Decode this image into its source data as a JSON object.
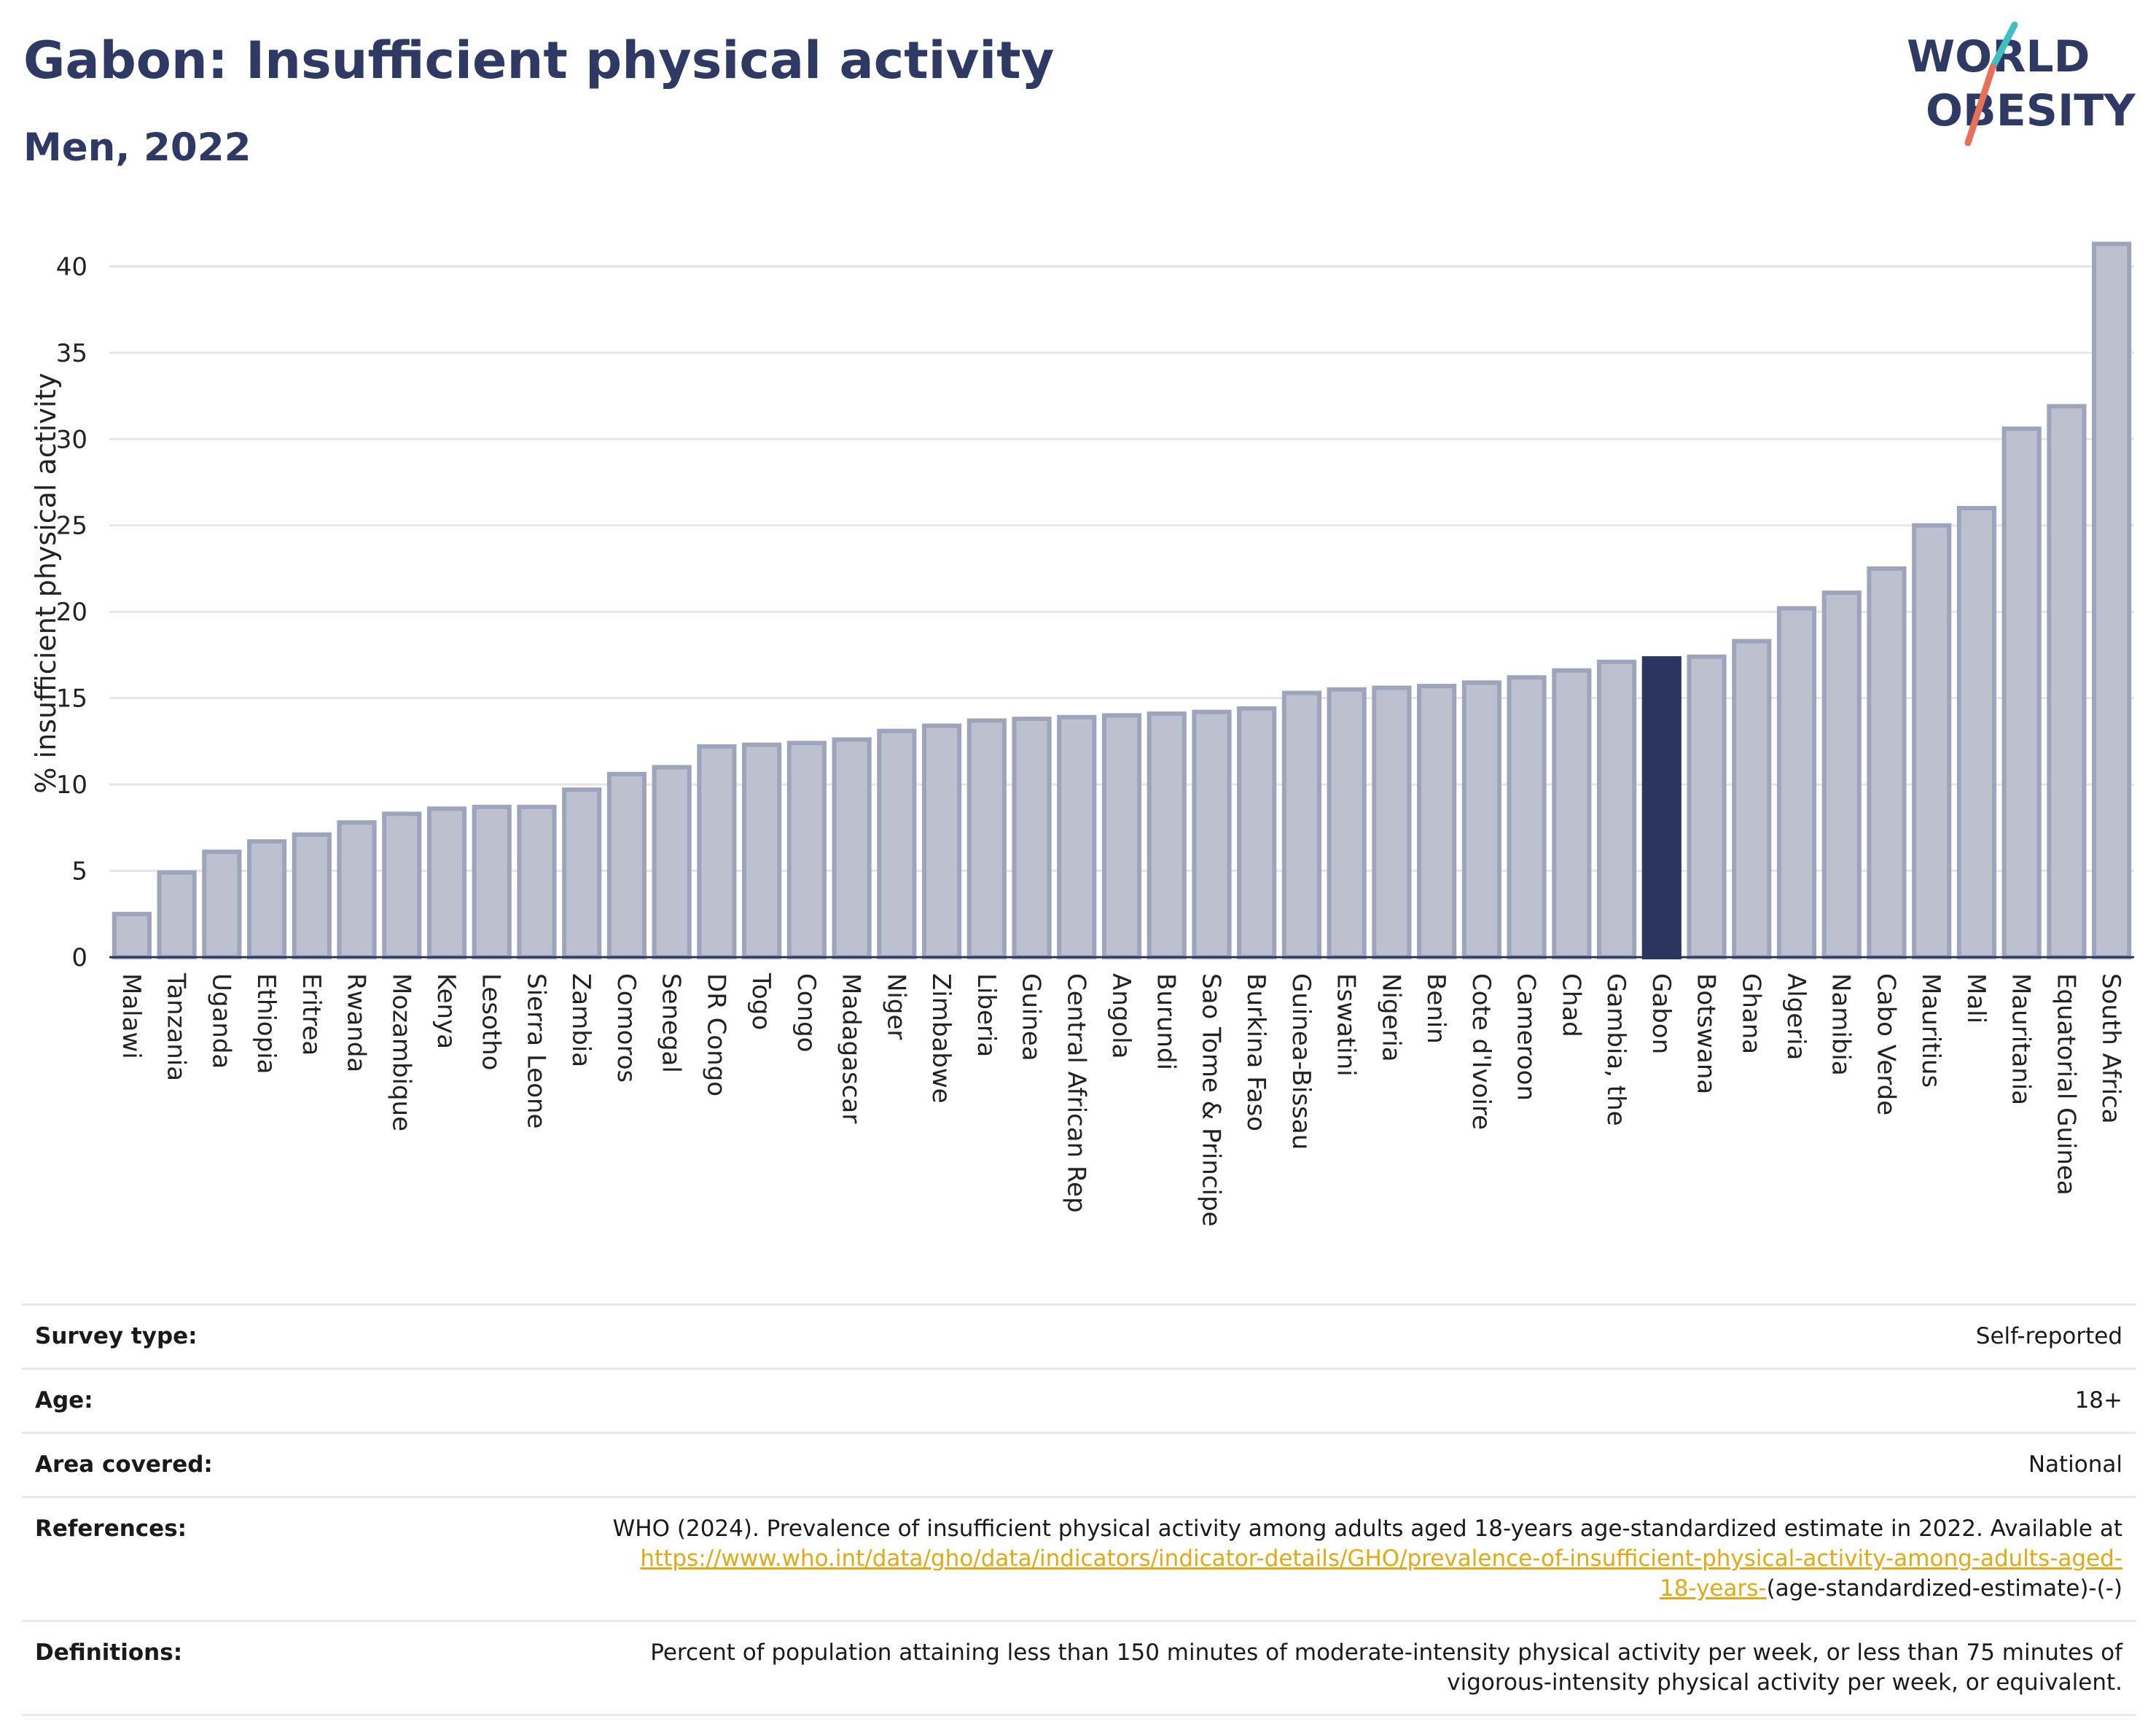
{
  "header": {
    "title": "Gabon: Insufficient physical activity",
    "subtitle": "Men, 2022"
  },
  "logo": {
    "line1": "WORLD",
    "line2": "OBESITY"
  },
  "colors": {
    "bar": "#bcc0cf",
    "bar_edge": "#9ea4bb",
    "highlight": "#2b3560",
    "title": "#2e3a63",
    "link": "#e4a815"
  },
  "chart_data": {
    "type": "bar",
    "title": "Gabon: Insufficient physical activity",
    "subtitle": "Men, 2022",
    "xlabel": "",
    "ylabel": "% insufficient physical activity",
    "ylim": [
      0,
      42
    ],
    "yticks": [
      0,
      5,
      10,
      15,
      20,
      25,
      30,
      35,
      40
    ],
    "grid": true,
    "highlight": "Gabon",
    "categories": [
      "Malawi",
      "Tanzania",
      "Uganda",
      "Ethiopia",
      "Eritrea",
      "Rwanda",
      "Mozambique",
      "Kenya",
      "Lesotho",
      "Sierra Leone",
      "Zambia",
      "Comoros",
      "Senegal",
      "DR Congo",
      "Togo",
      "Congo",
      "Madagascar",
      "Niger",
      "Zimbabwe",
      "Liberia",
      "Guinea",
      "Central African Rep",
      "Angola",
      "Burundi",
      "Sao Tome & Principe",
      "Burkina Faso",
      "Guinea-Bissau",
      "Eswatini",
      "Nigeria",
      "Benin",
      "Cote d'Ivoire",
      "Cameroon",
      "Chad",
      "Gambia, the",
      "Gabon",
      "Botswana",
      "Ghana",
      "Algeria",
      "Namibia",
      "Cabo Verde",
      "Mauritius",
      "Mali",
      "Mauritania",
      "Equatorial Guinea",
      "South Africa"
    ],
    "values": [
      2.5,
      4.9,
      6.1,
      6.7,
      7.1,
      7.8,
      8.3,
      8.6,
      8.7,
      8.7,
      9.7,
      10.6,
      11.0,
      12.2,
      12.3,
      12.4,
      12.6,
      13.1,
      13.4,
      13.7,
      13.8,
      13.9,
      14.0,
      14.1,
      14.2,
      14.4,
      15.3,
      15.5,
      15.6,
      15.7,
      15.9,
      16.2,
      16.6,
      17.1,
      17.3,
      17.4,
      18.3,
      20.2,
      21.1,
      22.5,
      25.0,
      26.0,
      30.6,
      31.9,
      41.3
    ]
  },
  "info": {
    "survey_type": {
      "label": "Survey type:",
      "value": "Self-reported"
    },
    "age": {
      "label": "Age:",
      "value": "18+"
    },
    "area": {
      "label": "Area covered:",
      "value": "National"
    },
    "references": {
      "label": "References:",
      "text_line1": "WHO (2024). Prevalence of insufficient physical activity among adults aged 18-years age-standardized estimate in 2022. Available at",
      "link_part1": "https://www.who.int/data/gho/data/indicators/indicator-details/GHO/prevalence-of-insufficient-physical-activity-among-adults-aged-",
      "link_part2": "18-years-",
      "text_after": "(age-standardized-estimate)-(-)"
    },
    "definitions": {
      "label": "Definitions:",
      "line1": "Percent of population attaining less than 150 minutes of moderate-intensity physical activity per week, or less than 75 minutes of",
      "line2": "vigorous-intensity physical activity per week, or equivalent."
    }
  }
}
